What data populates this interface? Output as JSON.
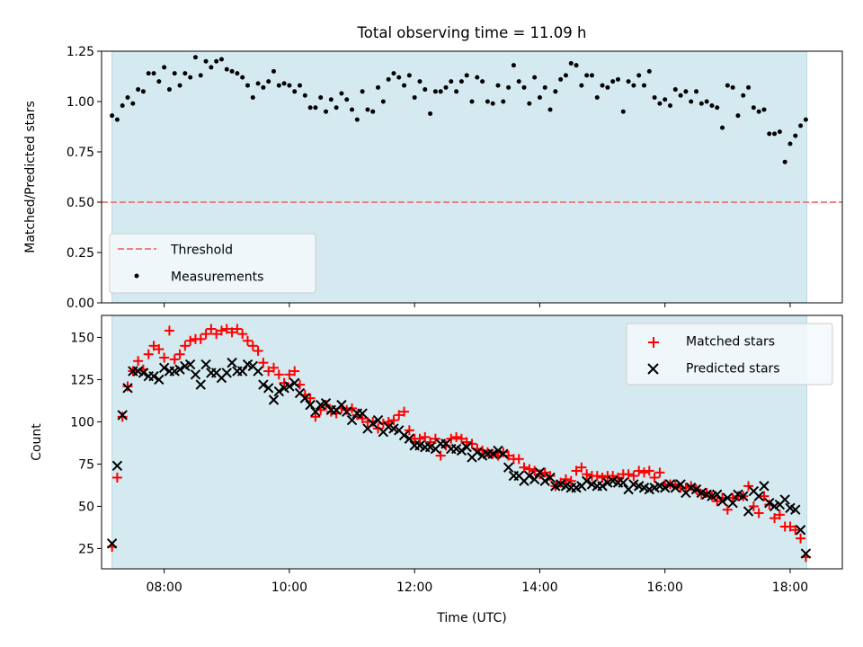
{
  "figure_title": "Total observing time = 11.09 h",
  "chart_data": [
    {
      "type": "scatter",
      "title": "Total observing time = 11.09 h",
      "xlabel": "",
      "ylabel": "Matched/Predicted stars",
      "xlim": [
        "07:00",
        "18:50"
      ],
      "ylim": [
        0,
        1.25
      ],
      "yticks": [
        "0.00",
        "0.25",
        "0.50",
        "0.75",
        "1.00",
        "1.25"
      ],
      "observing_window": [
        "07:10",
        "18:16"
      ],
      "shade_color": "#d4eaf0",
      "threshold": {
        "name": "Threshold",
        "value": 0.5,
        "color": "#f08080",
        "style": "dashed"
      },
      "series": [
        {
          "name": "Measurements",
          "color": "#000000",
          "marker": "dot",
          "x": [
            "07:10",
            "07:15",
            "07:20",
            "07:25",
            "07:30",
            "07:35",
            "07:40",
            "07:45",
            "07:50",
            "07:55",
            "08:00",
            "08:05",
            "08:10",
            "08:15",
            "08:20",
            "08:25",
            "08:30",
            "08:35",
            "08:40",
            "08:45",
            "08:50",
            "08:55",
            "09:00",
            "09:05",
            "09:10",
            "09:15",
            "09:20",
            "09:25",
            "09:30",
            "09:35",
            "09:40",
            "09:45",
            "09:50",
            "09:55",
            "10:00",
            "10:05",
            "10:10",
            "10:15",
            "10:20",
            "10:25",
            "10:30",
            "10:35",
            "10:40",
            "10:45",
            "10:50",
            "10:55",
            "11:00",
            "11:05",
            "11:10",
            "11:15",
            "11:20",
            "11:25",
            "11:30",
            "11:35",
            "11:40",
            "11:45",
            "11:50",
            "11:55",
            "12:00",
            "12:05",
            "12:10",
            "12:15",
            "12:20",
            "12:25",
            "12:30",
            "12:35",
            "12:40",
            "12:45",
            "12:50",
            "12:55",
            "13:00",
            "13:05",
            "13:10",
            "13:15",
            "13:20",
            "13:25",
            "13:30",
            "13:35",
            "13:40",
            "13:45",
            "13:50",
            "13:55",
            "14:00",
            "14:05",
            "14:10",
            "14:15",
            "14:20",
            "14:25",
            "14:30",
            "14:35",
            "14:40",
            "14:45",
            "14:50",
            "14:55",
            "15:00",
            "15:05",
            "15:10",
            "15:15",
            "15:20",
            "15:25",
            "15:30",
            "15:35",
            "15:40",
            "15:45",
            "15:50",
            "15:55",
            "16:00",
            "16:05",
            "16:10",
            "16:15",
            "16:20",
            "16:25",
            "16:30",
            "16:35",
            "16:40",
            "16:45",
            "16:50",
            "16:55",
            "17:00",
            "17:05",
            "17:10",
            "17:15",
            "17:20",
            "17:25",
            "17:30",
            "17:35",
            "17:40",
            "17:45",
            "17:50",
            "17:55",
            "18:00",
            "18:05",
            "18:10",
            "18:15"
          ],
          "y": [
            0.93,
            0.91,
            0.98,
            1.02,
            0.99,
            1.06,
            1.05,
            1.14,
            1.14,
            1.1,
            1.17,
            1.06,
            1.14,
            1.08,
            1.14,
            1.12,
            1.22,
            1.13,
            1.2,
            1.17,
            1.2,
            1.21,
            1.16,
            1.15,
            1.14,
            1.12,
            1.08,
            1.02,
            1.09,
            1.07,
            1.1,
            1.15,
            1.08,
            1.09,
            1.08,
            1.05,
            1.08,
            1.03,
            0.97,
            0.97,
            1.02,
            0.95,
            1.01,
            0.97,
            1.04,
            1.01,
            0.96,
            0.91,
            1.05,
            0.96,
            0.95,
            1.07,
            1.0,
            1.11,
            1.14,
            1.12,
            1.08,
            1.13,
            1.02,
            1.1,
            1.06,
            0.94,
            1.05,
            1.05,
            1.07,
            1.1,
            1.05,
            1.1,
            1.13,
            1.0,
            1.12,
            1.1,
            1.0,
            0.99,
            1.08,
            1.0,
            1.07,
            1.18,
            1.1,
            1.07,
            0.99,
            1.12,
            1.02,
            1.07,
            0.96,
            1.05,
            1.11,
            1.13,
            1.19,
            1.18,
            1.08,
            1.13,
            1.13,
            1.02,
            1.08,
            1.07,
            1.1,
            1.11,
            0.95,
            1.1,
            1.08,
            1.13,
            1.08,
            1.15,
            1.02,
            0.99,
            1.01,
            0.98,
            1.06,
            1.03,
            1.05,
            1.0,
            1.05,
            0.99,
            1.0,
            0.98,
            0.97,
            0.87,
            1.08,
            1.07,
            0.93,
            1.03,
            1.07,
            0.97,
            0.95,
            0.96,
            0.84,
            0.84,
            0.85,
            0.7,
            0.79,
            0.83,
            0.88,
            0.91
          ]
        }
      ],
      "legend": {
        "position": "lower left",
        "items": [
          "Threshold",
          "Measurements"
        ]
      }
    },
    {
      "type": "scatter",
      "title": "",
      "xlabel": "Time (UTC)",
      "ylabel": "Count",
      "xlim": [
        "07:00",
        "18:50"
      ],
      "ylim": [
        13,
        163
      ],
      "yticks": [
        "25",
        "50",
        "75",
        "100",
        "125",
        "150"
      ],
      "xticks": [
        "08:00",
        "10:00",
        "12:00",
        "14:00",
        "16:00",
        "18:00"
      ],
      "observing_window": [
        "07:10",
        "18:16"
      ],
      "shade_color": "#d4eaf0",
      "x": [
        "07:10",
        "07:15",
        "07:20",
        "07:25",
        "07:30",
        "07:35",
        "07:40",
        "07:45",
        "07:50",
        "07:55",
        "08:00",
        "08:05",
        "08:10",
        "08:15",
        "08:20",
        "08:25",
        "08:30",
        "08:35",
        "08:40",
        "08:45",
        "08:50",
        "08:55",
        "09:00",
        "09:05",
        "09:10",
        "09:15",
        "09:20",
        "09:25",
        "09:30",
        "09:35",
        "09:40",
        "09:45",
        "09:50",
        "09:55",
        "10:00",
        "10:05",
        "10:10",
        "10:15",
        "10:20",
        "10:25",
        "10:30",
        "10:35",
        "10:40",
        "10:45",
        "10:50",
        "10:55",
        "11:00",
        "11:05",
        "11:10",
        "11:15",
        "11:20",
        "11:25",
        "11:30",
        "11:35",
        "11:40",
        "11:45",
        "11:50",
        "11:55",
        "12:00",
        "12:05",
        "12:10",
        "12:15",
        "12:20",
        "12:25",
        "12:30",
        "12:35",
        "12:40",
        "12:45",
        "12:50",
        "12:55",
        "13:00",
        "13:05",
        "13:10",
        "13:15",
        "13:20",
        "13:25",
        "13:30",
        "13:35",
        "13:40",
        "13:45",
        "13:50",
        "13:55",
        "14:00",
        "14:05",
        "14:10",
        "14:15",
        "14:20",
        "14:25",
        "14:30",
        "14:35",
        "14:40",
        "14:45",
        "14:50",
        "14:55",
        "15:00",
        "15:05",
        "15:10",
        "15:15",
        "15:20",
        "15:25",
        "15:30",
        "15:35",
        "15:40",
        "15:45",
        "15:50",
        "15:55",
        "16:00",
        "16:05",
        "16:10",
        "16:15",
        "16:20",
        "16:25",
        "16:30",
        "16:35",
        "16:40",
        "16:45",
        "16:50",
        "16:55",
        "17:00",
        "17:05",
        "17:10",
        "17:15",
        "17:20",
        "17:25",
        "17:30",
        "17:35",
        "17:40",
        "17:45",
        "17:50",
        "17:55",
        "18:00",
        "18:05",
        "18:10",
        "18:15"
      ],
      "series": [
        {
          "name": "Matched stars",
          "color": "#ff0000",
          "marker": "plus",
          "values": [
            26,
            67,
            103,
            121,
            130,
            136,
            131,
            140,
            145,
            143,
            138,
            154,
            137,
            140,
            145,
            148,
            149,
            149,
            152,
            155,
            152,
            154,
            155,
            153,
            155,
            152,
            148,
            145,
            142,
            135,
            130,
            132,
            128,
            123,
            128,
            130,
            122,
            116,
            114,
            103,
            107,
            110,
            106,
            105,
            108,
            107,
            108,
            104,
            102,
            100,
            100,
            96,
            99,
            100,
            101,
            104,
            106,
            95,
            90,
            90,
            91,
            88,
            90,
            80,
            86,
            90,
            91,
            90,
            88,
            87,
            84,
            83,
            82,
            81,
            80,
            82,
            80,
            78,
            78,
            73,
            72,
            71,
            69,
            70,
            68,
            62,
            64,
            66,
            65,
            71,
            73,
            69,
            68,
            68,
            67,
            68,
            68,
            67,
            69,
            69,
            68,
            71,
            70,
            71,
            67,
            70,
            63,
            63,
            63,
            61,
            61,
            62,
            60,
            57,
            58,
            56,
            53,
            55,
            48,
            55,
            56,
            56,
            62,
            50,
            46,
            56,
            51,
            43,
            45,
            38,
            38,
            36,
            31,
            20
          ]
        },
        {
          "name": "Predicted stars",
          "color": "#000000",
          "marker": "x",
          "values": [
            28,
            74,
            104,
            120,
            130,
            130,
            129,
            127,
            127,
            125,
            132,
            130,
            130,
            131,
            133,
            134,
            128,
            122,
            134,
            129,
            129,
            126,
            129,
            135,
            130,
            130,
            134,
            133,
            130,
            122,
            120,
            113,
            118,
            120,
            121,
            123,
            117,
            114,
            110,
            106,
            110,
            111,
            107,
            107,
            110,
            106,
            101,
            105,
            105,
            96,
            99,
            101,
            94,
            97,
            96,
            95,
            92,
            90,
            86,
            86,
            85,
            85,
            84,
            87,
            87,
            84,
            84,
            83,
            85,
            79,
            82,
            80,
            81,
            81,
            83,
            81,
            73,
            68,
            68,
            65,
            68,
            66,
            70,
            65,
            67,
            62,
            63,
            62,
            61,
            61,
            62,
            65,
            63,
            62,
            62,
            64,
            65,
            64,
            64,
            60,
            63,
            62,
            61,
            60,
            61,
            62,
            61,
            63,
            61,
            63,
            58,
            61,
            60,
            58,
            57,
            56,
            57,
            53,
            55,
            52,
            57,
            56,
            47,
            59,
            56,
            62,
            52,
            50,
            51,
            54,
            49,
            48,
            36,
            22
          ]
        }
      ],
      "legend": {
        "position": "upper right",
        "items": [
          "Matched stars",
          "Predicted stars"
        ]
      }
    }
  ]
}
